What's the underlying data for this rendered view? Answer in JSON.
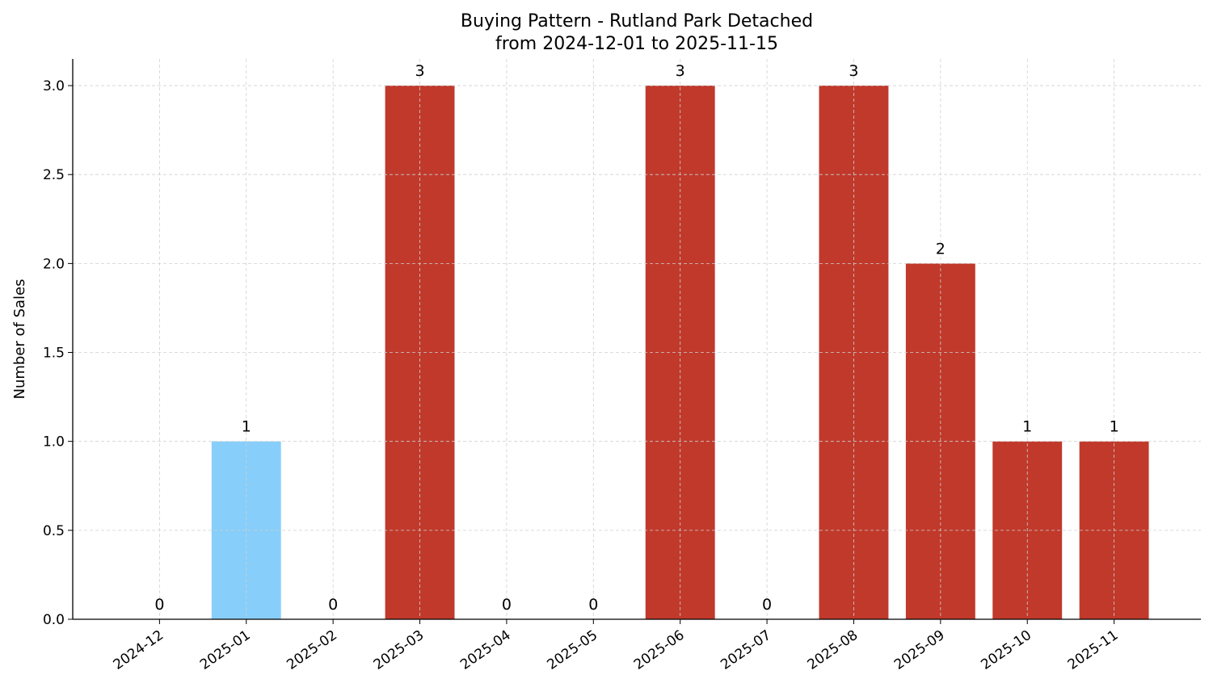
{
  "chart_data": {
    "type": "bar",
    "title": "Buying Pattern - Rutland Park Detached",
    "subtitle": "from 2024-12-01 to 2025-11-15",
    "xlabel": "",
    "ylabel": "Number of Sales",
    "categories": [
      "2024-12",
      "2025-01",
      "2025-02",
      "2025-03",
      "2025-04",
      "2025-05",
      "2025-06",
      "2025-07",
      "2025-08",
      "2025-09",
      "2025-10",
      "2025-11"
    ],
    "values": [
      0,
      1,
      0,
      3,
      0,
      0,
      3,
      0,
      3,
      2,
      1,
      1
    ],
    "data_labels": [
      "0",
      "1",
      "0",
      "3",
      "0",
      "0",
      "3",
      "0",
      "3",
      "2",
      "1",
      "1"
    ],
    "bar_colors": [
      "#c0392b",
      "#87cefa",
      "#c0392b",
      "#c0392b",
      "#c0392b",
      "#c0392b",
      "#c0392b",
      "#c0392b",
      "#c0392b",
      "#c0392b",
      "#c0392b",
      "#c0392b"
    ],
    "ylim": [
      0,
      3.15
    ],
    "yticks": [
      "0.0",
      "0.5",
      "1.0",
      "1.5",
      "2.0",
      "2.5",
      "3.0"
    ],
    "grid": true,
    "legend": "none"
  }
}
